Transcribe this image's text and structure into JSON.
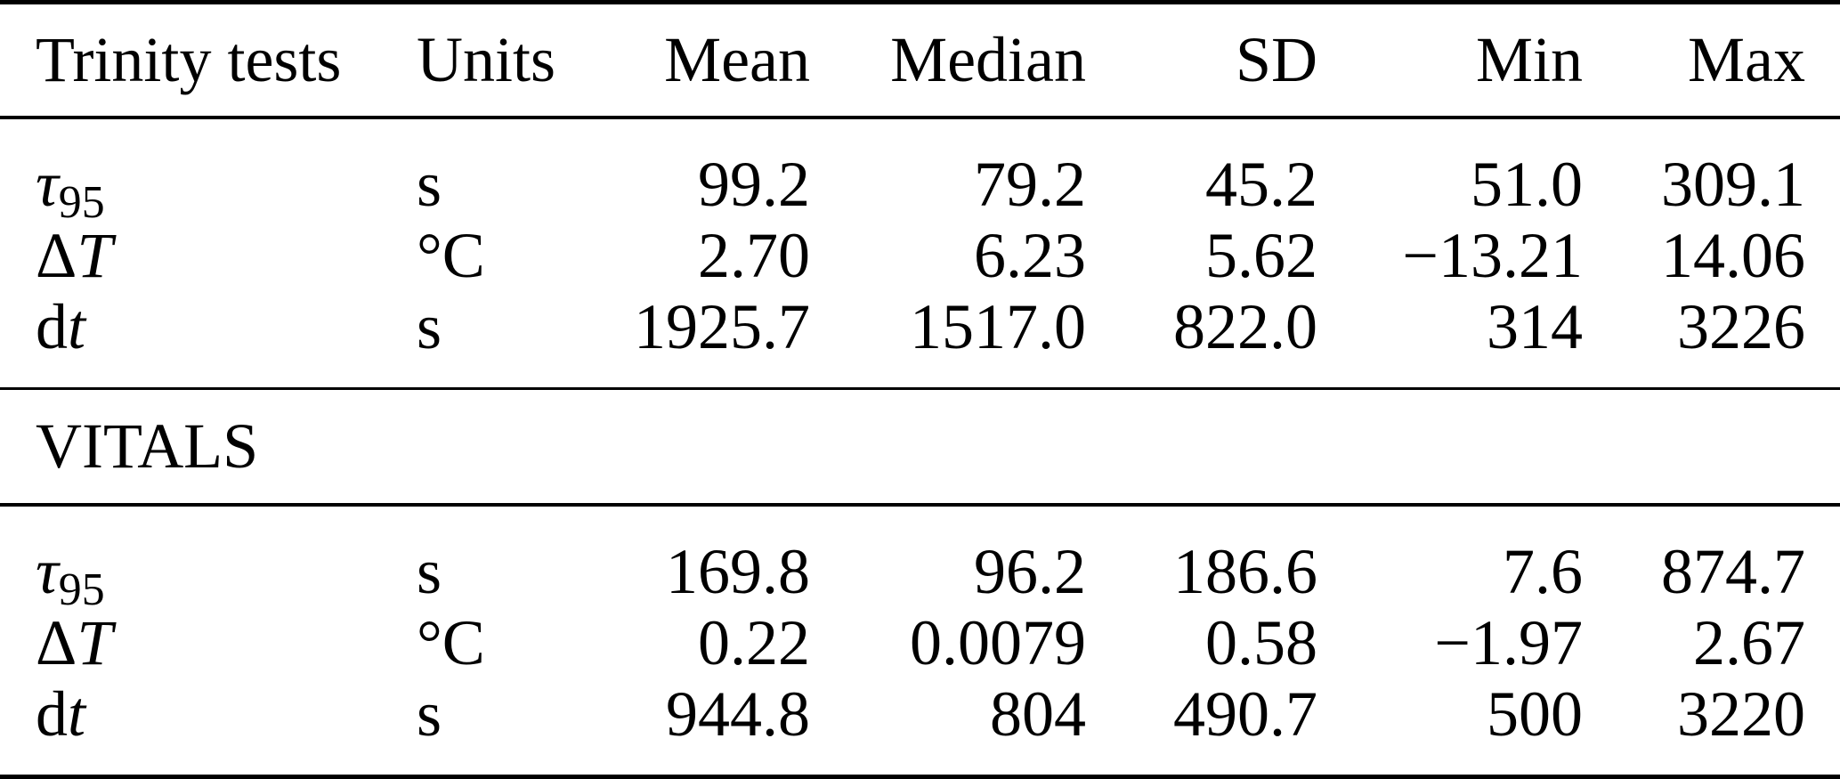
{
  "table": {
    "columns": [
      "Trinity tests",
      "Units",
      "Mean",
      "Median",
      "SD",
      "Min",
      "Max"
    ],
    "sections": [
      {
        "name": "Trinity tests",
        "rows": [
          {
            "label": {
              "pre": "",
              "it": "τ",
              "sub": "95"
            },
            "units": "s",
            "mean": "99.2",
            "median": "79.2",
            "sd": "45.2",
            "min": "51.0",
            "max": "309.1"
          },
          {
            "label": {
              "pre": "Δ",
              "it": "T",
              "sub": ""
            },
            "units": "°C",
            "mean": "2.70",
            "median": "6.23",
            "sd": "5.62",
            "min": "−13.21",
            "max": "14.06"
          },
          {
            "label": {
              "pre": "d",
              "it": "t",
              "sub": ""
            },
            "units": "s",
            "mean": "1925.7",
            "median": "1517.0",
            "sd": "822.0",
            "min": "314",
            "max": "3226"
          }
        ]
      },
      {
        "name": "VITALS",
        "rows": [
          {
            "label": {
              "pre": "",
              "it": "τ",
              "sub": "95"
            },
            "units": "s",
            "mean": "169.8",
            "median": "96.2",
            "sd": "186.6",
            "min": "7.6",
            "max": "874.7"
          },
          {
            "label": {
              "pre": "Δ",
              "it": "T",
              "sub": ""
            },
            "units": "°C",
            "mean": "0.22",
            "median": "0.0079",
            "sd": "0.58",
            "min": "−1.97",
            "max": "2.67"
          },
          {
            "label": {
              "pre": "d",
              "it": "t",
              "sub": ""
            },
            "units": "s",
            "mean": "944.8",
            "median": "804",
            "sd": "490.7",
            "min": "500",
            "max": "3220"
          }
        ]
      }
    ],
    "colors": {
      "text": "#000000",
      "background": "#ffffff",
      "rule": "#000000"
    }
  }
}
